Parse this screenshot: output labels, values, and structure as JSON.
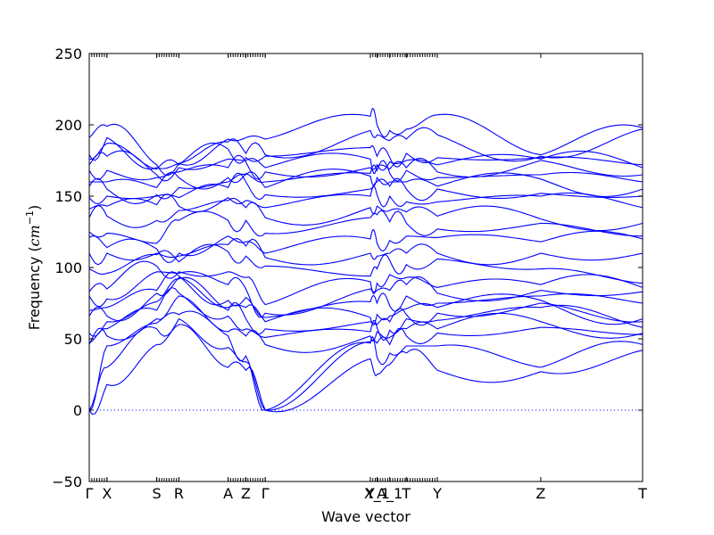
{
  "chart_data": {
    "type": "line",
    "title": "",
    "xlabel": "Wave vector",
    "ylabel_text": "Frequency (",
    "ylabel_unit_base": "cm",
    "ylabel_unit_exp": "−1",
    "ylabel_close": ")",
    "ylim": [
      -50,
      250
    ],
    "yticks": [
      -50,
      0,
      50,
      100,
      150,
      200,
      250
    ],
    "xlim": [
      0,
      1
    ],
    "grid": false,
    "zero_line": true,
    "line_color": "#0000ff",
    "high_symmetry_points": [
      {
        "label": "Γ",
        "x": 0.0
      },
      {
        "label": "X",
        "x": 0.032
      },
      {
        "label": "S",
        "x": 0.122
      },
      {
        "label": "R",
        "x": 0.162
      },
      {
        "label": "A",
        "x": 0.251
      },
      {
        "label": "Z",
        "x": 0.283
      },
      {
        "label": "Γ",
        "x": 0.318
      },
      {
        "label": "Y",
        "x": 0.508
      },
      {
        "label": "X_1",
        "x": 0.52
      },
      {
        "label": "A_1",
        "x": 0.543
      },
      {
        "label": "T",
        "x": 0.573
      },
      {
        "label": "Y",
        "x": 0.629
      },
      {
        "label": "Z",
        "x": 0.816
      },
      {
        "label": "T",
        "x": 1.0
      }
    ],
    "bands_at_points": [
      [
        0,
        0,
        0,
        46,
        47,
        54,
        66,
        70,
        80,
        83,
        99,
        110,
        121,
        125,
        135,
        141,
        149,
        157,
        160,
        168,
        172,
        176,
        179,
        191
      ],
      [
        18,
        30,
        45,
        52,
        57,
        62,
        66,
        72,
        78,
        85,
        96,
        110,
        114,
        124,
        136,
        143,
        150,
        155,
        160,
        168,
        178,
        187,
        191,
        199
      ],
      [
        46,
        57,
        61,
        64,
        70,
        76,
        82,
        84,
        97,
        101,
        109,
        110,
        113,
        117,
        133,
        144,
        150,
        151,
        156,
        163,
        165,
        169,
        170,
        172
      ],
      [
        60,
        64,
        67,
        80,
        82,
        92,
        93,
        94,
        96,
        97,
        104,
        108,
        110,
        133,
        140,
        143,
        149,
        156,
        163,
        167,
        170,
        172,
        173,
        173
      ],
      [
        30,
        44,
        52,
        55,
        66,
        70,
        72,
        77,
        88,
        97,
        111,
        116,
        122,
        133,
        147,
        149,
        156,
        160,
        163,
        170,
        176,
        183,
        188,
        190
      ],
      [
        28,
        34,
        38,
        52,
        57,
        64,
        72,
        79,
        85,
        93,
        108,
        115,
        118,
        133,
        142,
        147,
        160,
        165,
        166,
        174,
        175,
        177,
        180,
        191
      ],
      [
        0,
        0,
        0,
        46,
        51,
        57,
        62,
        65,
        68,
        74,
        101,
        107,
        110,
        124,
        135,
        142,
        151,
        156,
        160,
        167,
        170,
        178,
        179,
        190
      ],
      [
        36,
        47,
        48,
        52,
        55,
        62,
        65,
        76,
        85,
        90,
        94,
        110,
        120,
        135,
        142,
        150,
        155,
        164,
        166,
        170,
        176,
        184,
        196,
        206
      ],
      [
        25,
        37,
        47,
        55,
        58,
        60,
        67,
        75,
        84,
        89,
        99,
        108,
        117,
        137,
        143,
        151,
        160,
        163,
        168,
        171,
        172,
        178,
        193,
        200
      ],
      [
        32,
        40,
        46,
        51,
        56,
        62,
        66,
        73,
        84,
        95,
        105,
        110,
        119,
        132,
        140,
        150,
        157,
        160,
        166,
        169,
        174,
        177,
        189,
        196
      ],
      [
        40,
        45,
        52,
        57,
        64,
        67,
        71,
        80,
        88,
        93,
        102,
        110,
        122,
        131,
        139,
        146,
        155,
        160,
        168,
        170,
        175,
        180,
        190,
        197
      ],
      [
        28,
        45,
        54,
        57,
        63,
        68,
        72,
        75,
        82,
        86,
        106,
        110,
        121,
        127,
        136,
        146,
        155,
        157,
        163,
        167,
        172,
        177,
        193,
        207
      ],
      [
        27,
        30,
        58,
        62,
        72,
        75,
        77,
        80,
        84,
        88,
        99,
        110,
        118,
        131,
        134,
        150,
        152,
        162,
        165,
        175,
        176,
        177,
        178,
        179
      ],
      [
        42,
        46,
        53,
        54,
        58,
        62,
        64,
        75,
        83,
        86,
        89,
        110,
        120,
        122,
        131,
        142,
        150,
        155,
        160,
        165,
        170,
        172,
        197,
        198
      ]
    ]
  }
}
